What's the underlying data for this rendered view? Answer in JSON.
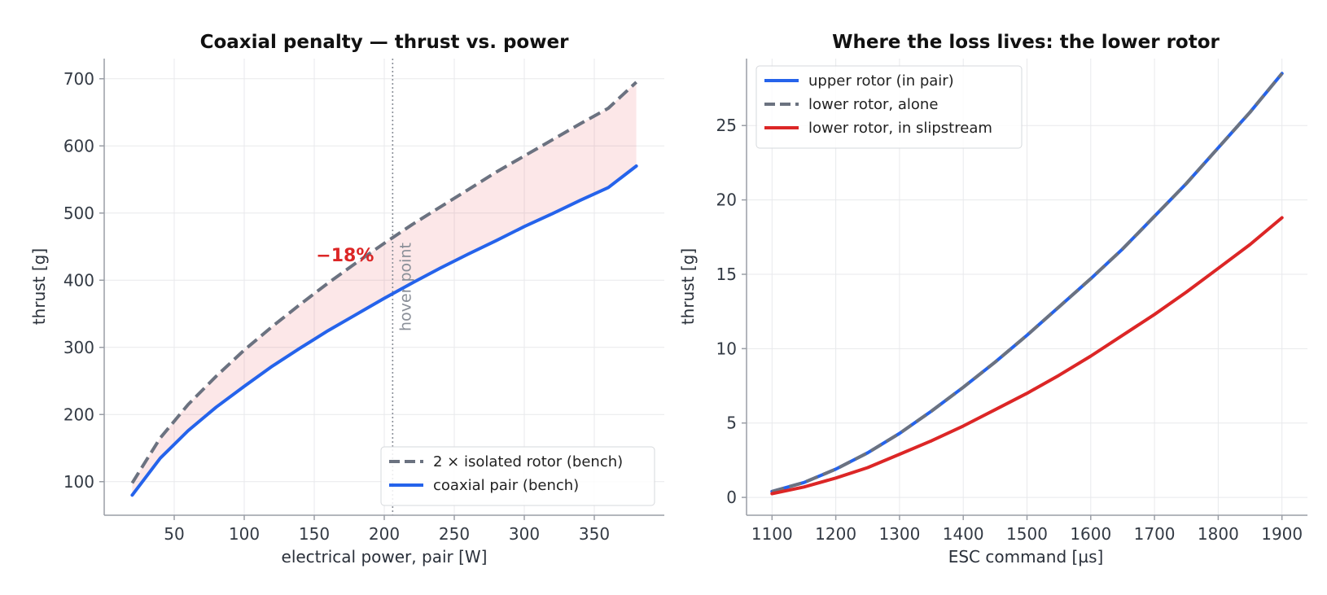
{
  "chart_data": [
    {
      "type": "line",
      "title": "Coaxial penalty — thrust vs. power",
      "xlabel": "electrical power, pair [W]",
      "ylabel": "thrust [g]",
      "xlim": [
        0,
        400
      ],
      "ylim": [
        50,
        730
      ],
      "xticks": [
        50,
        100,
        150,
        200,
        250,
        300,
        350
      ],
      "yticks": [
        100,
        200,
        300,
        400,
        500,
        600,
        700
      ],
      "grid": true,
      "legend_position": "lower-right",
      "series": [
        {
          "name": "2 × isolated rotor (bench)",
          "style": "dashed",
          "color": "#6b7280",
          "x": [
            20,
            40,
            60,
            80,
            100,
            120,
            140,
            160,
            180,
            200,
            220,
            240,
            260,
            280,
            300,
            320,
            340,
            360,
            380
          ],
          "y": [
            98,
            165,
            215,
            257,
            296,
            331,
            364,
            396,
            426,
            455,
            483,
            509,
            535,
            561,
            585,
            609,
            633,
            656,
            695
          ]
        },
        {
          "name": "coaxial pair (bench)",
          "style": "solid",
          "color": "#2563eb",
          "x": [
            20,
            40,
            60,
            80,
            100,
            120,
            140,
            160,
            180,
            200,
            220,
            240,
            260,
            280,
            300,
            320,
            340,
            360,
            380
          ],
          "y": [
            80,
            135,
            176,
            211,
            242,
            272,
            299,
            325,
            349,
            373,
            396,
            418,
            439,
            459,
            480,
            499,
            519,
            538,
            570
          ]
        }
      ],
      "fill_between": {
        "color": "#e5484d",
        "opacity": 0.13
      },
      "vline": {
        "x": 206,
        "label": "hover point",
        "color": "#8a8f98"
      },
      "annotation": {
        "text": "−18%",
        "x": 172,
        "y": 428,
        "color": "#dc2626"
      }
    },
    {
      "type": "line",
      "title": "Where the loss lives: the lower rotor",
      "xlabel": "ESC command [µs]",
      "ylabel": "thrust [g]",
      "xlim": [
        1060,
        1940
      ],
      "ylim": [
        -1.2,
        29.5
      ],
      "xticks": [
        1100,
        1200,
        1300,
        1400,
        1500,
        1600,
        1700,
        1800,
        1900
      ],
      "yticks": [
        0,
        5,
        10,
        15,
        20,
        25
      ],
      "grid": true,
      "legend_position": "top-left",
      "series": [
        {
          "name": "upper rotor (in pair)",
          "style": "solid",
          "color": "#2563eb",
          "x": [
            1100,
            1150,
            1200,
            1250,
            1300,
            1350,
            1400,
            1450,
            1500,
            1550,
            1600,
            1650,
            1700,
            1750,
            1800,
            1850,
            1900
          ],
          "y": [
            0.4,
            1.0,
            1.9,
            3.0,
            4.3,
            5.8,
            7.4,
            9.1,
            10.9,
            12.8,
            14.7,
            16.7,
            18.9,
            21.1,
            23.5,
            25.9,
            28.5
          ]
        },
        {
          "name": "lower rotor, alone",
          "style": "dashed",
          "color": "#6b7280",
          "x": [
            1100,
            1150,
            1200,
            1250,
            1300,
            1350,
            1400,
            1450,
            1500,
            1550,
            1600,
            1650,
            1700,
            1750,
            1800,
            1850,
            1900
          ],
          "y": [
            0.4,
            1.0,
            1.9,
            3.0,
            4.3,
            5.8,
            7.4,
            9.1,
            10.9,
            12.8,
            14.7,
            16.7,
            18.9,
            21.1,
            23.5,
            25.9,
            28.5
          ]
        },
        {
          "name": "lower rotor, in slipstream",
          "style": "solid",
          "color": "#dc2626",
          "x": [
            1100,
            1150,
            1200,
            1250,
            1300,
            1350,
            1400,
            1450,
            1500,
            1550,
            1600,
            1650,
            1700,
            1750,
            1800,
            1850,
            1900
          ],
          "y": [
            0.25,
            0.7,
            1.3,
            2.0,
            2.9,
            3.8,
            4.8,
            5.9,
            7.0,
            8.2,
            9.5,
            10.9,
            12.3,
            13.8,
            15.4,
            17.0,
            18.8
          ]
        }
      ]
    }
  ]
}
